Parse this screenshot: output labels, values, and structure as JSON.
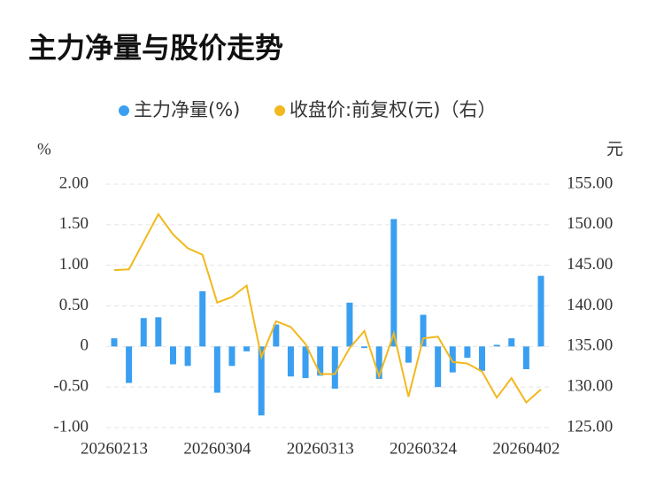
{
  "chart_data": {
    "type": "bar-line",
    "title": "主力净量与股价走势",
    "y_label": "%",
    "y2_label": "元",
    "categories": [
      "20260213",
      null,
      null,
      null,
      null,
      null,
      null,
      "20260304",
      null,
      null,
      null,
      null,
      null,
      null,
      "20260313",
      null,
      null,
      null,
      null,
      null,
      null,
      "20260324",
      null,
      null,
      null,
      null,
      null,
      null,
      "20260402",
      null
    ],
    "series": [
      {
        "name": "主力净量(%)",
        "type": "bar",
        "color": "#3a9ff0",
        "values": [
          0.1,
          -0.45,
          0.35,
          0.36,
          -0.22,
          -0.24,
          0.68,
          -0.57,
          -0.24,
          -0.06,
          -0.85,
          0.27,
          -0.37,
          -0.39,
          -0.36,
          -0.52,
          0.54,
          -0.02,
          -0.4,
          1.57,
          -0.2,
          0.39,
          -0.5,
          -0.32,
          -0.14,
          -0.3,
          0.02,
          0.1,
          -0.28,
          0.87
        ]
      },
      {
        "name": "收盘价:前复权(元)（右）",
        "type": "line",
        "axis": "y2",
        "color": "#f2b81d",
        "values": [
          144.4,
          144.5,
          147.9,
          151.3,
          148.8,
          147.1,
          146.3,
          140.4,
          141.1,
          142.5,
          133.7,
          138.1,
          137.4,
          135.3,
          131.6,
          131.6,
          134.8,
          136.9,
          131.3,
          136.6,
          128.8,
          136.0,
          136.2,
          133.1,
          132.9,
          131.9,
          128.7,
          131.1,
          128.1,
          129.7
        ]
      }
    ],
    "ylim": [
      -1,
      2
    ],
    "yticks": [
      {
        "value": -1,
        "label": "-1.00"
      },
      {
        "value": -0.5,
        "label": "-0.50"
      },
      0,
      {
        "value": 0.5,
        "label": "0.50"
      },
      {
        "value": 1,
        "label": "1.00"
      },
      {
        "value": 1.5,
        "label": "1.50"
      },
      {
        "value": 2,
        "label": "2.00"
      }
    ],
    "y2lim": [
      125,
      155
    ],
    "y2ticks": [
      {
        "value": 125,
        "label": "125.00"
      },
      {
        "value": 130,
        "label": "130.00"
      },
      {
        "value": 135,
        "label": "135.00"
      },
      {
        "value": 140,
        "label": "140.00"
      },
      {
        "value": 145,
        "label": "145.00"
      },
      {
        "value": 150,
        "label": "150.00"
      },
      {
        "value": 155,
        "label": "155.00"
      }
    ],
    "grid": true,
    "legend": "top"
  }
}
